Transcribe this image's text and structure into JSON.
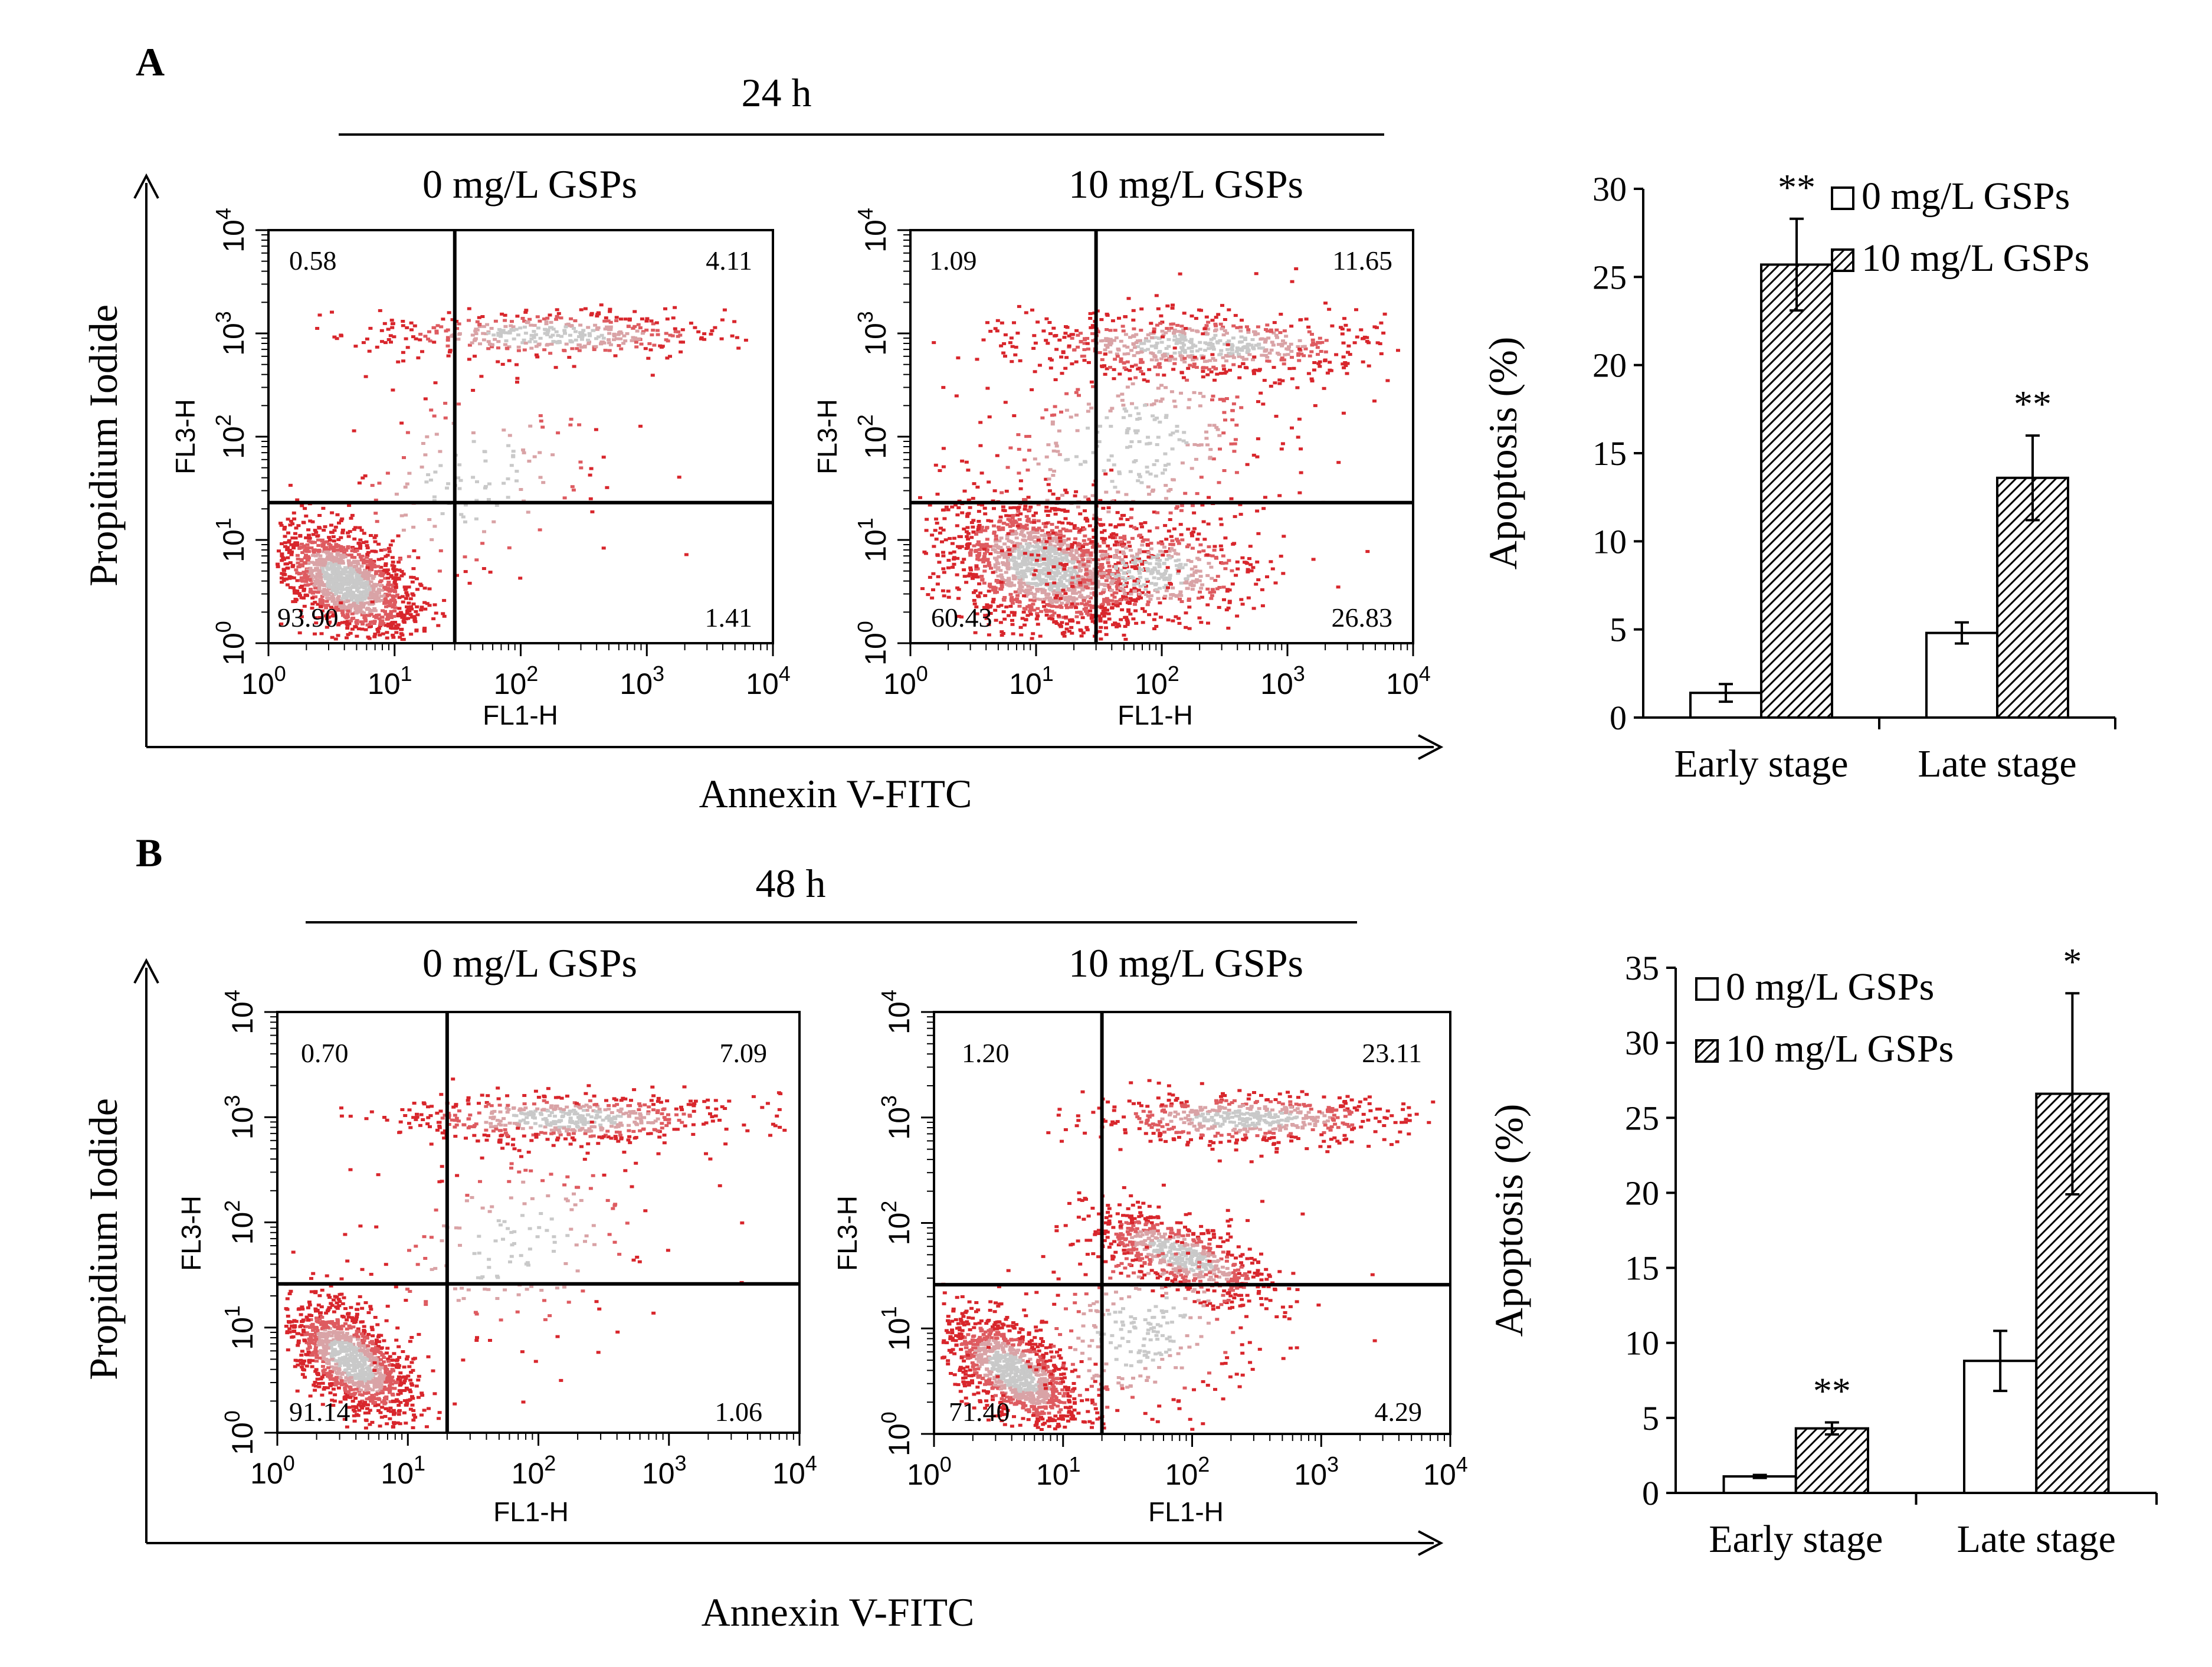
{
  "panels": [
    {
      "letter": "A",
      "time_label": "24 h",
      "y_axis_label": "Propidium Iodide",
      "x_axis_label": "Annexin V-FITC",
      "flow_plots": [
        {
          "title": "0 mg/L GSPs",
          "x_label": "FL1-H",
          "y_label": "FL3-H",
          "quadrants": {
            "upper_left": "0.58",
            "upper_right": "4.11",
            "lower_left": "93.90",
            "lower_right": "1.41"
          },
          "gate": {
            "x": 30,
            "y": 23
          }
        },
        {
          "title": "10 mg/L GSPs",
          "x_label": "FL1-H",
          "y_label": "FL3-H",
          "quadrants": {
            "upper_left": "1.09",
            "upper_right": "11.65",
            "lower_left": "60.43",
            "lower_right": "26.83"
          },
          "gate": {
            "x": 30,
            "y": 23
          }
        }
      ]
    },
    {
      "letter": "B",
      "time_label": "48 h",
      "y_axis_label": "Propidium Iodide",
      "x_axis_label": "Annexin V-FITC",
      "flow_plots": [
        {
          "title": "0 mg/L GSPs",
          "x_label": "FL1-H",
          "y_label": "FL3-H",
          "quadrants": {
            "upper_left": "0.70",
            "upper_right": "7.09",
            "lower_left": "91.14",
            "lower_right": "1.06"
          },
          "gate": {
            "x": 20,
            "y": 26
          }
        },
        {
          "title": "10 mg/L GSPs",
          "x_label": "FL1-H",
          "y_label": "FL3-H",
          "quadrants": {
            "upper_left": "1.20",
            "upper_right": "23.11",
            "lower_left": "71.40",
            "lower_right": "4.29"
          },
          "gate": {
            "x": 20,
            "y": 26
          }
        }
      ]
    }
  ],
  "log_ticks": [
    {
      "base": "10",
      "exp": "0"
    },
    {
      "base": "10",
      "exp": "1"
    },
    {
      "base": "10",
      "exp": "2"
    },
    {
      "base": "10",
      "exp": "3"
    },
    {
      "base": "10",
      "exp": "4"
    }
  ],
  "chart_data": [
    {
      "type": "bar",
      "panel": "A",
      "title": "",
      "xlabel": "",
      "ylabel": "Apoptosis (%)",
      "ylim": [
        0,
        30
      ],
      "yticks": [
        0,
        5,
        10,
        15,
        20,
        25,
        30
      ],
      "categories": [
        "Early stage",
        "Late stage"
      ],
      "series": [
        {
          "name": "0 mg/L  GSPs",
          "values": [
            1.4,
            4.8
          ],
          "errors": [
            0.5,
            0.6
          ],
          "sig": [
            "",
            ""
          ]
        },
        {
          "name": "10 mg/L  GSPs",
          "values": [
            25.7,
            13.6
          ],
          "errors": [
            2.6,
            2.4
          ],
          "sig": [
            "**",
            "**"
          ]
        }
      ],
      "legend_position": "top-right"
    },
    {
      "type": "bar",
      "panel": "B",
      "title": "",
      "xlabel": "",
      "ylabel": "Apoptosis (%)",
      "ylim": [
        0,
        35
      ],
      "yticks": [
        0,
        5,
        10,
        15,
        20,
        25,
        30,
        35
      ],
      "categories": [
        "Early stage",
        "Late stage"
      ],
      "series": [
        {
          "name": "0 mg/L GSPs",
          "values": [
            1.1,
            8.8
          ],
          "errors": [
            0.1,
            2.0
          ],
          "sig": [
            "",
            ""
          ]
        },
        {
          "name": "10 mg/L GSPs",
          "values": [
            4.3,
            26.6
          ],
          "errors": [
            0.4,
            6.7
          ],
          "sig": [
            "**",
            "*"
          ]
        }
      ],
      "legend_position": "top-left"
    }
  ]
}
